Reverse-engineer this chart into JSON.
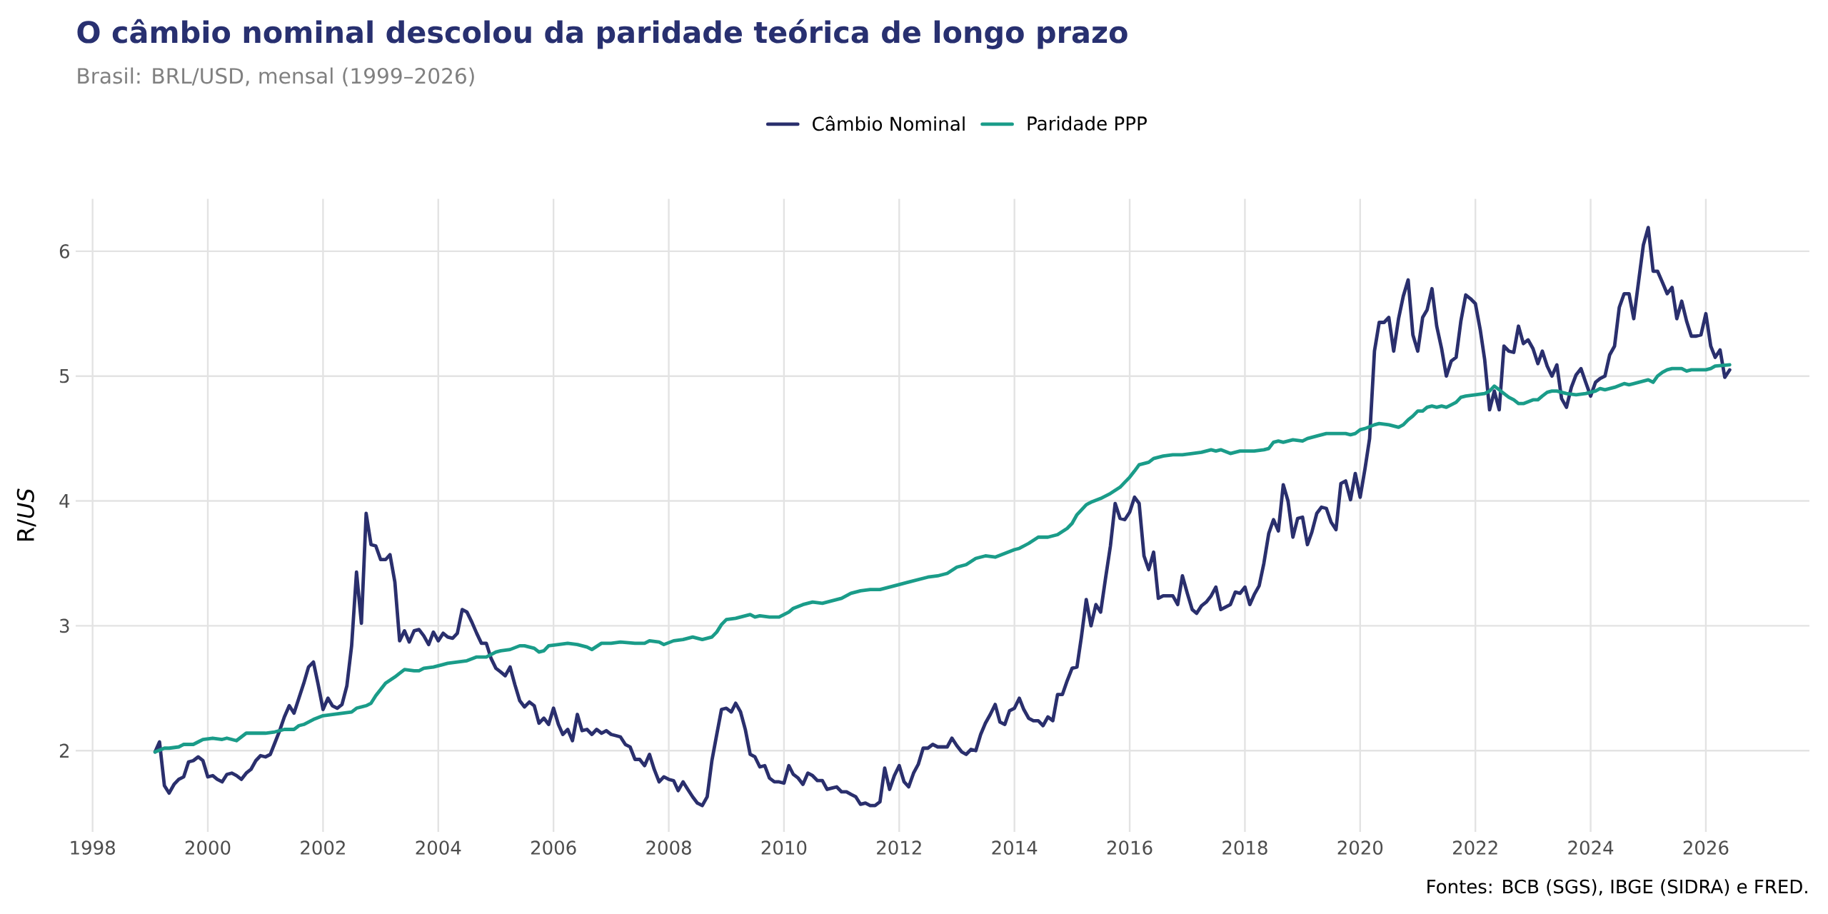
{
  "chart_data": {
    "type": "line",
    "title": "O câmbio nominal descolou da paridade teórica de longo prazo",
    "subtitle": "Brasil: BRL/USD, mensal (1999–2026)",
    "ylabel": "R/*US*",
    "annotations": [
      "Fontes: BCB (SGS), IBGE (SIDRA) e FRED."
    ],
    "xlim": [
      "1997-09-16",
      "2027-10-19"
    ],
    "xticks": [
      "1998",
      "2000",
      "2002",
      "2004",
      "2006",
      "2008",
      "2010",
      "2012",
      "2014",
      "2016",
      "2018",
      "2020",
      "2022",
      "2024",
      "2026"
    ],
    "ylim": [
      1.35,
      6.42
    ],
    "yticks": [
      2,
      3,
      4,
      5,
      6
    ],
    "grid": true,
    "legend": "top",
    "marker": "none",
    "line_style": "solid",
    "series": [
      {
        "name": "Câmbio Nominal",
        "color": "#2a2f6d",
        "x": [
          "1999-02",
          "1999-03",
          "1999-04",
          "1999-05",
          "1999-06",
          "1999-07",
          "1999-08",
          "1999-09",
          "1999-10",
          "1999-11",
          "1999-12",
          "2000-01",
          "2000-02",
          "2000-03",
          "2000-04",
          "2000-05",
          "2000-06",
          "2000-07",
          "2000-08",
          "2000-09",
          "2000-10",
          "2000-11",
          "2000-12",
          "2001-01",
          "2001-02",
          "2001-03",
          "2001-04",
          "2001-05",
          "2001-06",
          "2001-07",
          "2001-08",
          "2001-09",
          "2001-10",
          "2001-11",
          "2001-12",
          "2002-01",
          "2002-02",
          "2002-03",
          "2002-04",
          "2002-05",
          "2002-06",
          "2002-07",
          "2002-08",
          "2002-09",
          "2002-10",
          "2002-11",
          "2002-12",
          "2003-01",
          "2003-02",
          "2003-03",
          "2003-04",
          "2003-05",
          "2003-06",
          "2003-07",
          "2003-08",
          "2003-09",
          "2003-10",
          "2003-11",
          "2003-12",
          "2004-01",
          "2004-02",
          "2004-03",
          "2004-04",
          "2004-05",
          "2004-06",
          "2004-07",
          "2004-08",
          "2004-09",
          "2004-10",
          "2004-11",
          "2004-12",
          "2005-01",
          "2005-02",
          "2005-03",
          "2005-04",
          "2005-05",
          "2005-06",
          "2005-07",
          "2005-08",
          "2005-09",
          "2005-10",
          "2005-11",
          "2005-12",
          "2006-01",
          "2006-02",
          "2006-03",
          "2006-04",
          "2006-05",
          "2006-06",
          "2006-07",
          "2006-08",
          "2006-09",
          "2006-10",
          "2006-11",
          "2006-12",
          "2007-01",
          "2007-02",
          "2007-03",
          "2007-04",
          "2007-05",
          "2007-06",
          "2007-07",
          "2007-08",
          "2007-09",
          "2007-10",
          "2007-11",
          "2007-12",
          "2008-01",
          "2008-02",
          "2008-03",
          "2008-04",
          "2008-05",
          "2008-06",
          "2008-07",
          "2008-08",
          "2008-09",
          "2008-10",
          "2008-11",
          "2008-12",
          "2009-01",
          "2009-02",
          "2009-03",
          "2009-04",
          "2009-05",
          "2009-06",
          "2009-07",
          "2009-08",
          "2009-09",
          "2009-10",
          "2009-11",
          "2009-12",
          "2010-01",
          "2010-02",
          "2010-03",
          "2010-04",
          "2010-05",
          "2010-06",
          "2010-07",
          "2010-08",
          "2010-09",
          "2010-10",
          "2010-11",
          "2010-12",
          "2011-01",
          "2011-02",
          "2011-03",
          "2011-04",
          "2011-05",
          "2011-06",
          "2011-07",
          "2011-08",
          "2011-09",
          "2011-10",
          "2011-11",
          "2011-12",
          "2012-01",
          "2012-02",
          "2012-03",
          "2012-04",
          "2012-05",
          "2012-06",
          "2012-07",
          "2012-08",
          "2012-09",
          "2012-10",
          "2012-11",
          "2012-12",
          "2013-01",
          "2013-02",
          "2013-03",
          "2013-04",
          "2013-05",
          "2013-06",
          "2013-07",
          "2013-08",
          "2013-09",
          "2013-10",
          "2013-11",
          "2013-12",
          "2014-01",
          "2014-02",
          "2014-03",
          "2014-04",
          "2014-05",
          "2014-06",
          "2014-07",
          "2014-08",
          "2014-09",
          "2014-10",
          "2014-11",
          "2014-12",
          "2015-01",
          "2015-02",
          "2015-03",
          "2015-04",
          "2015-05",
          "2015-06",
          "2015-07",
          "2015-08",
          "2015-09",
          "2015-10",
          "2015-11",
          "2015-12",
          "2016-01",
          "2016-02",
          "2016-03",
          "2016-04",
          "2016-05",
          "2016-06",
          "2016-07",
          "2016-08",
          "2016-09",
          "2016-10",
          "2016-11",
          "2016-12",
          "2017-01",
          "2017-02",
          "2017-03",
          "2017-04",
          "2017-05",
          "2017-06",
          "2017-07",
          "2017-08",
          "2017-09",
          "2017-10",
          "2017-11",
          "2017-12",
          "2018-01",
          "2018-02",
          "2018-03",
          "2018-04",
          "2018-05",
          "2018-06",
          "2018-07",
          "2018-08",
          "2018-09",
          "2018-10",
          "2018-11",
          "2018-12",
          "2019-01",
          "2019-02",
          "2019-03",
          "2019-04",
          "2019-05",
          "2019-06",
          "2019-07",
          "2019-08",
          "2019-09",
          "2019-10",
          "2019-11",
          "2019-12",
          "2020-01",
          "2020-02",
          "2020-03",
          "2020-04",
          "2020-05",
          "2020-06",
          "2020-07",
          "2020-08",
          "2020-09",
          "2020-10",
          "2020-11",
          "2020-12",
          "2021-01",
          "2021-02",
          "2021-03",
          "2021-04",
          "2021-05",
          "2021-06",
          "2021-07",
          "2021-08",
          "2021-09",
          "2021-10",
          "2021-11",
          "2021-12",
          "2022-01",
          "2022-02",
          "2022-03",
          "2022-04",
          "2022-05",
          "2022-06",
          "2022-07",
          "2022-08",
          "2022-09",
          "2022-10",
          "2022-11",
          "2022-12",
          "2023-01",
          "2023-02",
          "2023-03",
          "2023-04",
          "2023-05",
          "2023-06",
          "2023-07",
          "2023-08",
          "2023-09",
          "2023-10",
          "2023-11",
          "2023-12",
          "2024-01",
          "2024-02",
          "2024-03",
          "2024-04",
          "2024-05",
          "2024-06",
          "2024-07",
          "2024-08",
          "2024-09",
          "2024-10",
          "2024-11",
          "2024-12",
          "2025-01",
          "2025-02",
          "2025-03",
          "2025-04",
          "2025-05",
          "2025-06",
          "2025-07",
          "2025-08",
          "2025-09",
          "2025-10",
          "2025-11",
          "2025-12",
          "2026-01",
          "2026-02",
          "2026-03",
          "2026-04",
          "2026-05",
          "2026-06"
        ],
        "values": [
          1.99,
          2.07,
          1.72,
          1.66,
          1.73,
          1.77,
          1.79,
          1.91,
          1.92,
          1.95,
          1.92,
          1.79,
          1.8,
          1.77,
          1.75,
          1.81,
          1.82,
          1.8,
          1.77,
          1.82,
          1.85,
          1.92,
          1.96,
          1.95,
          1.97,
          2.06,
          2.16,
          2.27,
          2.36,
          2.3,
          2.42,
          2.54,
          2.67,
          2.71,
          2.53,
          2.33,
          2.42,
          2.36,
          2.34,
          2.37,
          2.52,
          2.84,
          3.43,
          3.02,
          3.9,
          3.65,
          3.64,
          3.53,
          3.53,
          3.57,
          3.35,
          2.88,
          2.96,
          2.87,
          2.96,
          2.97,
          2.92,
          2.85,
          2.95,
          2.88,
          2.94,
          2.91,
          2.9,
          2.94,
          3.13,
          3.11,
          3.03,
          2.94,
          2.86,
          2.86,
          2.74,
          2.66,
          2.63,
          2.6,
          2.67,
          2.53,
          2.4,
          2.35,
          2.39,
          2.36,
          2.22,
          2.26,
          2.21,
          2.34,
          2.21,
          2.13,
          2.17,
          2.08,
          2.29,
          2.16,
          2.17,
          2.13,
          2.17,
          2.14,
          2.16,
          2.13,
          2.12,
          2.11,
          2.05,
          2.03,
          1.93,
          1.93,
          1.88,
          1.97,
          1.85,
          1.75,
          1.79,
          1.77,
          1.76,
          1.68,
          1.75,
          1.69,
          1.63,
          1.58,
          1.56,
          1.63,
          1.92,
          2.13,
          2.33,
          2.34,
          2.31,
          2.38,
          2.31,
          2.17,
          1.97,
          1.95,
          1.87,
          1.88,
          1.78,
          1.75,
          1.75,
          1.74,
          1.88,
          1.81,
          1.78,
          1.73,
          1.82,
          1.8,
          1.76,
          1.76,
          1.69,
          1.7,
          1.71,
          1.67,
          1.67,
          1.65,
          1.63,
          1.57,
          1.58,
          1.56,
          1.56,
          1.59,
          1.86,
          1.69,
          1.8,
          1.88,
          1.75,
          1.71,
          1.82,
          1.89,
          2.02,
          2.02,
          2.05,
          2.03,
          2.03,
          2.03,
          2.1,
          2.04,
          1.99,
          1.97,
          2.01,
          2.0,
          2.13,
          2.22,
          2.29,
          2.37,
          2.23,
          2.21,
          2.32,
          2.34,
          2.42,
          2.33,
          2.26,
          2.24,
          2.24,
          2.2,
          2.27,
          2.24,
          2.45,
          2.45,
          2.56,
          2.66,
          2.67,
          2.91,
          3.21,
          3.0,
          3.17,
          3.11,
          3.38,
          3.64,
          3.98,
          3.86,
          3.85,
          3.91,
          4.03,
          3.98,
          3.56,
          3.45,
          3.59,
          3.22,
          3.24,
          3.24,
          3.24,
          3.17,
          3.4,
          3.26,
          3.13,
          3.1,
          3.16,
          3.19,
          3.24,
          3.31,
          3.13,
          3.15,
          3.17,
          3.27,
          3.26,
          3.31,
          3.17,
          3.25,
          3.32,
          3.5,
          3.74,
          3.85,
          3.76,
          4.13,
          4.0,
          3.71,
          3.86,
          3.87,
          3.65,
          3.75,
          3.9,
          3.95,
          3.94,
          3.83,
          3.77,
          4.14,
          4.16,
          4.01,
          4.22,
          4.03,
          4.26,
          4.5,
          5.2,
          5.43,
          5.43,
          5.47,
          5.2,
          5.46,
          5.64,
          5.77,
          5.33,
          5.2,
          5.47,
          5.53,
          5.7,
          5.4,
          5.22,
          5.0,
          5.12,
          5.15,
          5.44,
          5.65,
          5.62,
          5.58,
          5.37,
          5.13,
          4.73,
          4.88,
          4.73,
          5.24,
          5.2,
          5.19,
          5.4,
          5.26,
          5.29,
          5.22,
          5.1,
          5.2,
          5.08,
          5.0,
          5.09,
          4.82,
          4.75,
          4.91,
          5.01,
          5.06,
          4.95,
          4.84,
          4.95,
          4.98,
          5.0,
          5.17,
          5.24,
          5.55,
          5.66,
          5.66,
          5.46,
          5.76,
          6.05,
          6.19,
          5.84,
          5.84,
          5.75,
          5.66,
          5.71,
          5.46,
          5.6,
          5.44,
          5.32,
          5.32,
          5.33,
          5.5,
          5.24,
          5.15,
          5.21,
          4.99,
          5.05
        ]
      },
      {
        "name": "Paridade PPP",
        "color": "#1a9c89",
        "x": [
          "1999-02",
          "1999-04",
          "1999-05",
          "1999-07",
          "1999-08",
          "1999-09",
          "1999-10",
          "1999-11",
          "1999-12",
          "2000-02",
          "2000-04",
          "2000-05",
          "2000-07",
          "2000-09",
          "2000-11",
          "2001-01",
          "2001-03",
          "2001-05",
          "2001-07",
          "2001-08",
          "2001-09",
          "2001-11",
          "2002-01",
          "2002-03",
          "2002-05",
          "2002-07",
          "2002-08",
          "2002-10",
          "2002-11",
          "2002-12",
          "2003-01",
          "2003-02",
          "2003-04",
          "2003-05",
          "2003-06",
          "2003-08",
          "2003-09",
          "2003-10",
          "2003-12",
          "2004-02",
          "2004-03",
          "2004-05",
          "2004-07",
          "2004-09",
          "2004-10",
          "2004-11",
          "2005-01",
          "2005-02",
          "2005-04",
          "2005-06",
          "2005-07",
          "2005-09",
          "2005-10",
          "2005-11",
          "2005-12",
          "2006-02",
          "2006-04",
          "2006-06",
          "2006-08",
          "2006-09",
          "2006-11",
          "2007-01",
          "2007-03",
          "2007-06",
          "2007-08",
          "2007-09",
          "2007-11",
          "2007-12",
          "2008-02",
          "2008-04",
          "2008-06",
          "2008-08",
          "2008-10",
          "2008-11",
          "2008-12",
          "2009-01",
          "2009-03",
          "2009-05",
          "2009-06",
          "2009-07",
          "2009-08",
          "2009-10",
          "2009-12",
          "2010-02",
          "2010-03",
          "2010-05",
          "2010-07",
          "2010-09",
          "2010-11",
          "2011-01",
          "2011-03",
          "2011-05",
          "2011-07",
          "2011-09",
          "2011-11",
          "2012-01",
          "2012-03",
          "2012-05",
          "2012-07",
          "2012-09",
          "2012-11",
          "2013-01",
          "2013-03",
          "2013-05",
          "2013-07",
          "2013-09",
          "2013-11",
          "2014-01",
          "2014-02",
          "2014-04",
          "2014-06",
          "2014-08",
          "2014-10",
          "2014-12",
          "2015-01",
          "2015-02",
          "2015-04",
          "2015-05",
          "2015-07",
          "2015-09",
          "2015-11",
          "2015-12",
          "2016-01",
          "2016-02",
          "2016-03",
          "2016-05",
          "2016-06",
          "2016-08",
          "2016-10",
          "2016-12",
          "2017-02",
          "2017-04",
          "2017-06",
          "2017-07",
          "2017-08",
          "2017-10",
          "2017-12",
          "2018-03",
          "2018-05",
          "2018-06",
          "2018-07",
          "2018-08",
          "2018-09",
          "2018-11",
          "2019-01",
          "2019-02",
          "2019-04",
          "2019-06",
          "2019-08",
          "2019-10",
          "2019-11",
          "2019-12",
          "2020-01",
          "2020-02",
          "2020-04",
          "2020-05",
          "2020-07",
          "2020-09",
          "2020-10",
          "2020-11",
          "2020-12",
          "2021-01",
          "2021-02",
          "2021-03",
          "2021-04",
          "2021-05",
          "2021-06",
          "2021-07",
          "2021-08",
          "2021-09",
          "2021-10",
          "2021-11",
          "2022-01",
          "2022-03",
          "2022-04",
          "2022-05",
          "2022-06",
          "2022-07",
          "2022-08",
          "2022-09",
          "2022-10",
          "2022-11",
          "2023-01",
          "2023-02",
          "2023-03",
          "2023-04",
          "2023-05",
          "2023-06",
          "2023-08",
          "2023-10",
          "2023-12",
          "2024-02",
          "2024-03",
          "2024-04",
          "2024-06",
          "2024-08",
          "2024-09",
          "2024-11",
          "2025-01",
          "2025-02",
          "2025-03",
          "2025-04",
          "2025-05",
          "2025-06",
          "2025-08",
          "2025-09",
          "2025-10",
          "2026-01",
          "2026-02",
          "2026-03",
          "2026-06"
        ],
        "values": [
          1.99,
          2.02,
          2.02,
          2.03,
          2.05,
          2.05,
          2.05,
          2.07,
          2.09,
          2.1,
          2.09,
          2.1,
          2.08,
          2.14,
          2.14,
          2.14,
          2.15,
          2.17,
          2.17,
          2.2,
          2.21,
          2.25,
          2.28,
          2.29,
          2.3,
          2.31,
          2.34,
          2.36,
          2.38,
          2.44,
          2.49,
          2.54,
          2.59,
          2.62,
          2.65,
          2.64,
          2.64,
          2.66,
          2.67,
          2.69,
          2.7,
          2.71,
          2.72,
          2.75,
          2.75,
          2.75,
          2.79,
          2.8,
          2.81,
          2.84,
          2.84,
          2.82,
          2.79,
          2.8,
          2.84,
          2.85,
          2.86,
          2.85,
          2.83,
          2.81,
          2.86,
          2.86,
          2.87,
          2.86,
          2.86,
          2.88,
          2.87,
          2.85,
          2.88,
          2.89,
          2.91,
          2.89,
          2.91,
          2.95,
          3.01,
          3.05,
          3.06,
          3.08,
          3.09,
          3.07,
          3.08,
          3.07,
          3.07,
          3.11,
          3.14,
          3.17,
          3.19,
          3.18,
          3.2,
          3.22,
          3.26,
          3.28,
          3.29,
          3.29,
          3.31,
          3.33,
          3.35,
          3.37,
          3.39,
          3.4,
          3.42,
          3.47,
          3.49,
          3.54,
          3.56,
          3.55,
          3.58,
          3.61,
          3.62,
          3.66,
          3.71,
          3.71,
          3.73,
          3.78,
          3.82,
          3.89,
          3.97,
          3.99,
          4.02,
          4.06,
          4.11,
          4.15,
          4.19,
          4.24,
          4.29,
          4.31,
          4.34,
          4.36,
          4.37,
          4.37,
          4.38,
          4.39,
          4.41,
          4.4,
          4.41,
          4.38,
          4.4,
          4.4,
          4.41,
          4.42,
          4.47,
          4.48,
          4.47,
          4.49,
          4.48,
          4.5,
          4.52,
          4.54,
          4.54,
          4.54,
          4.53,
          4.54,
          4.57,
          4.58,
          4.61,
          4.62,
          4.61,
          4.59,
          4.61,
          4.65,
          4.68,
          4.72,
          4.72,
          4.75,
          4.76,
          4.75,
          4.76,
          4.75,
          4.77,
          4.79,
          4.83,
          4.84,
          4.85,
          4.86,
          4.88,
          4.92,
          4.89,
          4.86,
          4.83,
          4.81,
          4.78,
          4.78,
          4.81,
          4.81,
          4.84,
          4.87,
          4.88,
          4.88,
          4.86,
          4.85,
          4.86,
          4.88,
          4.9,
          4.89,
          4.91,
          4.94,
          4.93,
          4.95,
          4.97,
          4.95,
          5.0,
          5.03,
          5.05,
          5.06,
          5.06,
          5.04,
          5.05,
          5.05,
          5.06,
          5.08,
          5.09
        ]
      }
    ]
  }
}
